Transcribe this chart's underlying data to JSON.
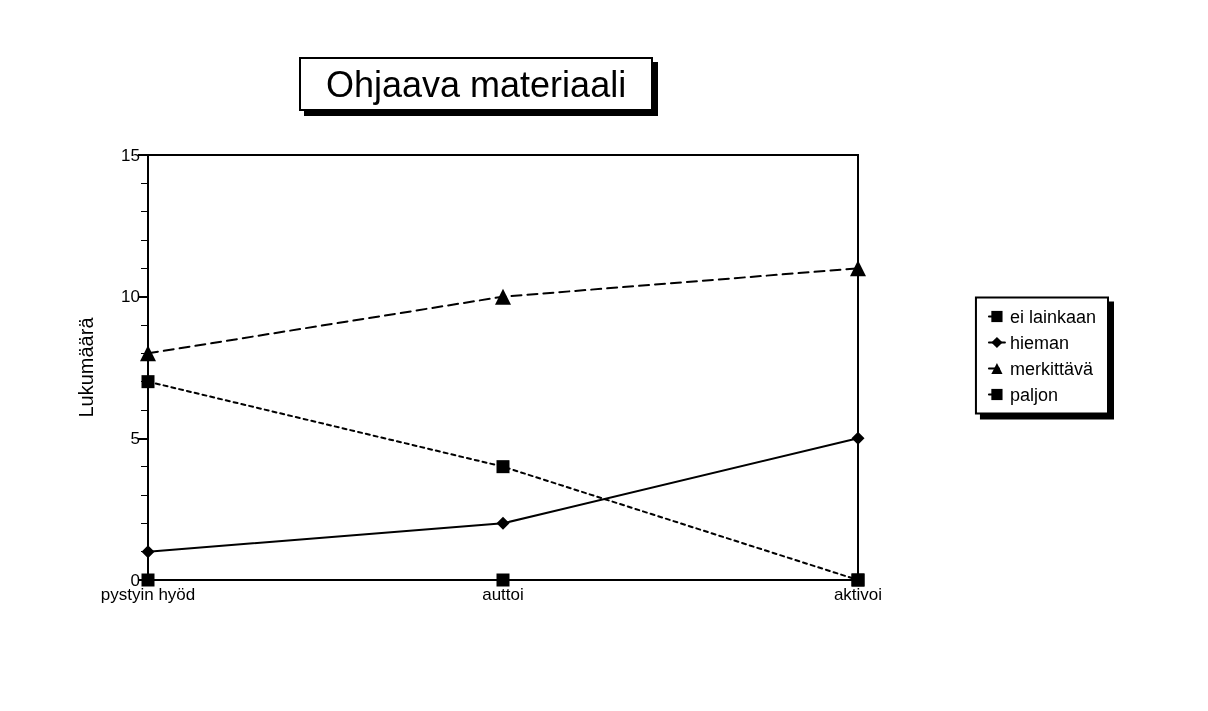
{
  "chart_data": {
    "type": "line",
    "title": "Ohjaava materiaali",
    "ylabel": "Lukumäärä",
    "categories": [
      "pystyin hyöd",
      "auttoi",
      "aktivoi"
    ],
    "series": [
      {
        "name": "ei lainkaan",
        "color": "#000000",
        "values": [
          0,
          0,
          0
        ],
        "marker": "square",
        "line_style": "dotted"
      },
      {
        "name": "hieman",
        "color": "#000000",
        "values": [
          1,
          2,
          5
        ],
        "marker": "diamond",
        "line_style": "solid"
      },
      {
        "name": "merkittävä",
        "color": "#000000",
        "values": [
          8,
          10,
          11
        ],
        "marker": "triangle",
        "line_style": "dashed"
      },
      {
        "name": "paljon",
        "color": "#000000",
        "values": [
          7,
          4,
          0
        ],
        "marker": "square",
        "line_style": "dotted"
      }
    ],
    "ylim": [
      0,
      15
    ],
    "yticks": [
      0,
      5,
      10,
      15
    ],
    "grid": false,
    "legend": "right"
  }
}
